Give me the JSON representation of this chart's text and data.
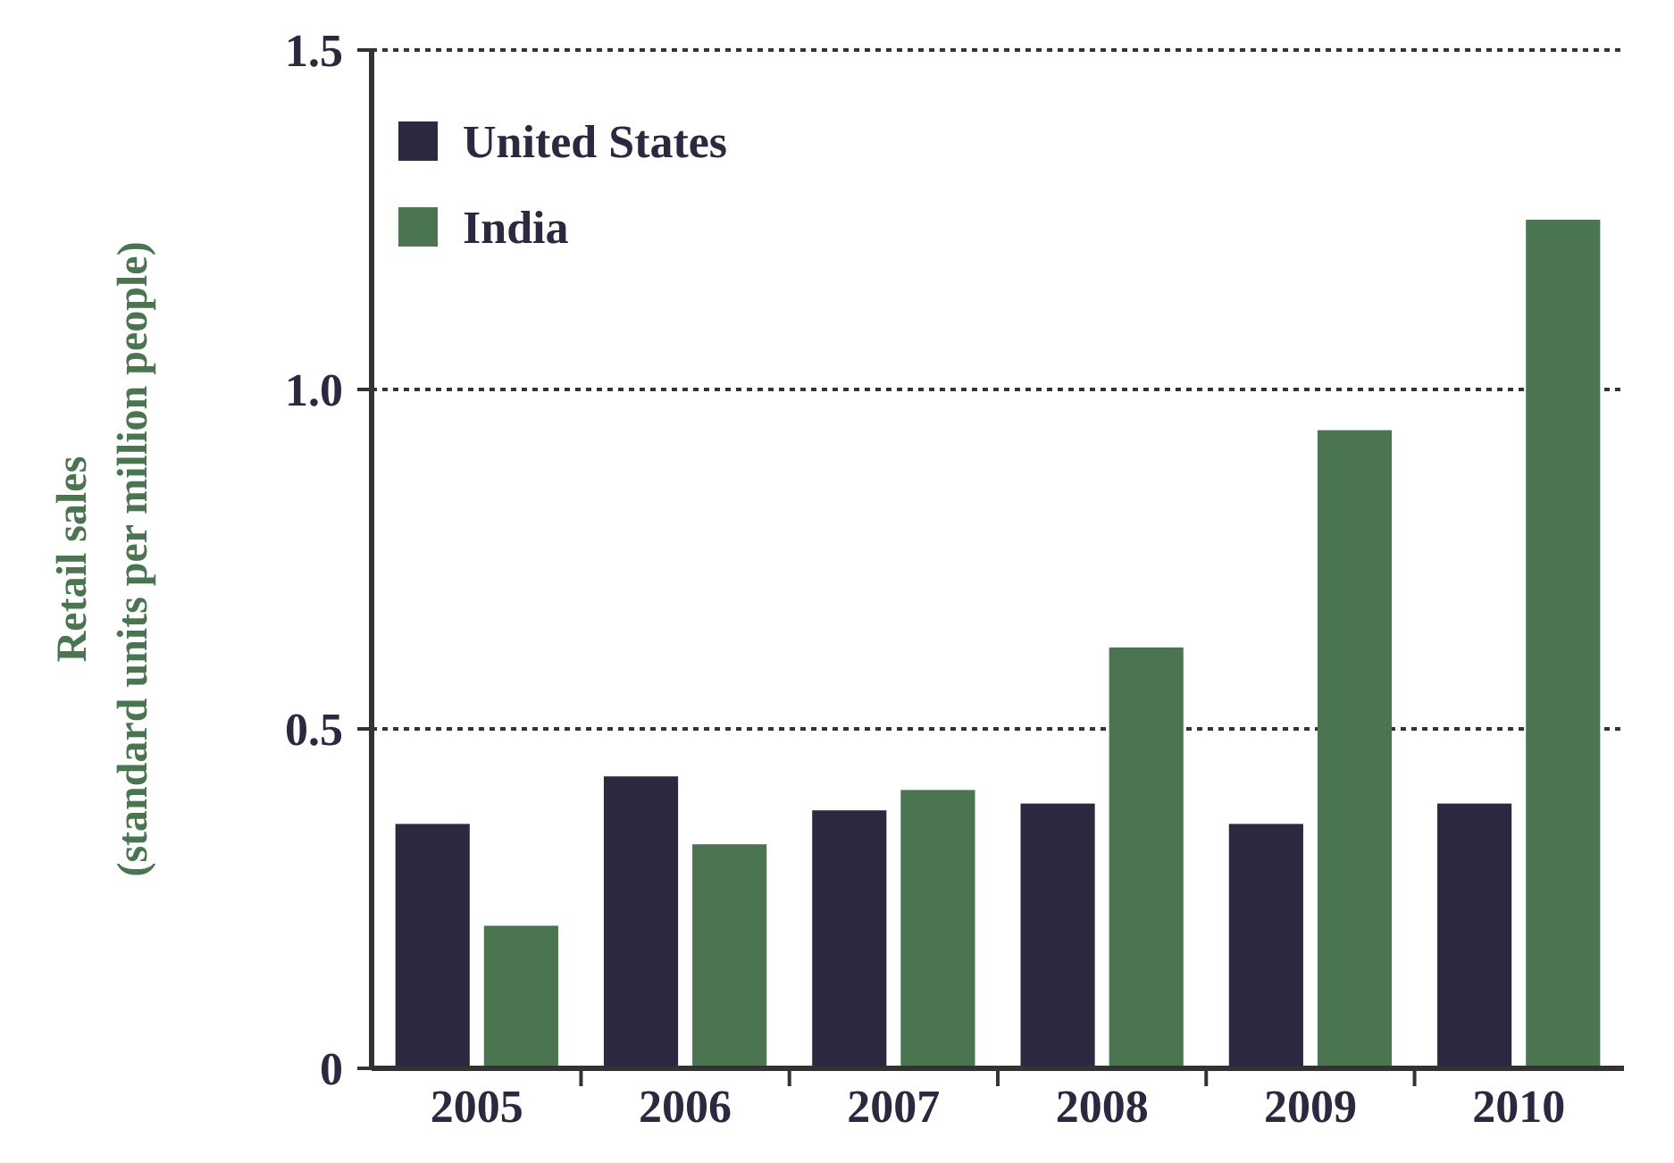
{
  "chart_data": {
    "type": "bar",
    "ylabel": "Retail sales\n(standard units per million people)",
    "categories": [
      "2005",
      "2006",
      "2007",
      "2008",
      "2009",
      "2010"
    ],
    "series": [
      {
        "name": "United States",
        "color": "#2b2840",
        "values": [
          0.36,
          0.43,
          0.38,
          0.39,
          0.36,
          0.39
        ]
      },
      {
        "name": "India",
        "color": "#4a7550",
        "values": [
          0.21,
          0.33,
          0.41,
          0.62,
          0.94,
          1.25
        ]
      }
    ],
    "ylim": [
      0,
      1.5
    ],
    "yticks": [
      0,
      {
        "value": 0.5,
        "label": "0.5"
      },
      {
        "value": 1,
        "label": "1.0"
      },
      {
        "value": 1.5,
        "label": "1.5"
      }
    ],
    "grid": "y",
    "legend": "top left"
  }
}
